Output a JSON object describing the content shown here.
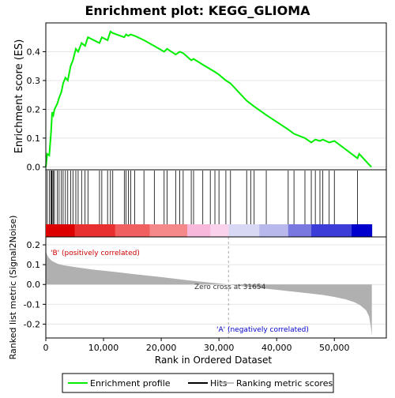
{
  "chart_data": {
    "type": "line",
    "title": "Enrichment plot: KEGG_GLIOMA",
    "xlabel": "Rank in Ordered Dataset",
    "xlim": [
      0,
      59000
    ],
    "x_ticks": [
      0,
      10000,
      20000,
      30000,
      40000,
      50000
    ],
    "x_tick_labels": [
      "0",
      "10,000",
      "20,000",
      "30,000",
      "40,000",
      "50,000"
    ],
    "es_panel": {
      "ylabel": "Enrichment score (ES)",
      "ylim": [
        -0.01,
        0.5
      ],
      "y_ticks": [
        0.0,
        0.1,
        0.2,
        0.3,
        0.4
      ],
      "y_tick_labels": [
        "0.0",
        "0.1",
        "0.2",
        "0.3",
        "0.4"
      ],
      "series": [
        {
          "name": "Enrichment profile",
          "color": "#00ee00",
          "x": [
            0,
            250,
            600,
            900,
            1100,
            1300,
            1500,
            2000,
            2300,
            2700,
            3000,
            3400,
            3800,
            4300,
            4700,
            5200,
            5600,
            6200,
            6800,
            7300,
            9300,
            9700,
            10700,
            11200,
            11600,
            13600,
            13900,
            14300,
            14700,
            15400,
            17000,
            18800,
            20500,
            21000,
            22500,
            23200,
            23800,
            25200,
            25600,
            27200,
            29300,
            30000,
            31200,
            32000,
            34800,
            36100,
            38200,
            42000,
            43000,
            44900,
            46000,
            46700,
            47500,
            48000,
            49100,
            50000,
            54000,
            54300,
            56400
          ],
          "y": [
            0.0,
            0.045,
            0.04,
            0.12,
            0.19,
            0.18,
            0.2,
            0.22,
            0.24,
            0.26,
            0.29,
            0.31,
            0.3,
            0.35,
            0.37,
            0.41,
            0.4,
            0.43,
            0.42,
            0.45,
            0.43,
            0.45,
            0.44,
            0.47,
            0.465,
            0.45,
            0.46,
            0.455,
            0.46,
            0.455,
            0.44,
            0.42,
            0.4,
            0.41,
            0.39,
            0.4,
            0.395,
            0.37,
            0.375,
            0.355,
            0.33,
            0.32,
            0.3,
            0.29,
            0.23,
            0.21,
            0.18,
            0.13,
            0.115,
            0.1,
            0.085,
            0.095,
            0.09,
            0.095,
            0.085,
            0.09,
            0.03,
            0.045,
            0.0
          ]
        }
      ]
    },
    "hits": {
      "name": "Hits",
      "color": "#000000",
      "x": [
        250,
        600,
        900,
        1000,
        1100,
        1300,
        1500,
        2000,
        2300,
        2700,
        3000,
        3400,
        3800,
        4300,
        4700,
        5200,
        5600,
        6200,
        6800,
        7300,
        9300,
        9700,
        10700,
        11200,
        11600,
        13600,
        13900,
        14300,
        14700,
        15400,
        17000,
        18800,
        20500,
        21000,
        22500,
        23200,
        23800,
        25200,
        25600,
        27200,
        28500,
        29300,
        30000,
        31200,
        32000,
        34800,
        35500,
        36100,
        38200,
        42000,
        43000,
        44900,
        46000,
        46700,
        47500,
        48000,
        49100,
        50000,
        54000
      ]
    },
    "ranking_bar": {
      "segments": [
        {
          "to": 5000,
          "color": "#dd0000"
        },
        {
          "to": 12000,
          "color": "#e83030"
        },
        {
          "to": 18000,
          "color": "#f06060"
        },
        {
          "to": 24500,
          "color": "#f58888"
        },
        {
          "to": 28500,
          "color": "#f8b8dc"
        },
        {
          "to": 31654,
          "color": "#fbd2ec"
        },
        {
          "to": 37000,
          "color": "#d8d8f4"
        },
        {
          "to": 42000,
          "color": "#b8b8ec"
        },
        {
          "to": 46000,
          "color": "#7878e0"
        },
        {
          "to": 53000,
          "color": "#3c3cd8"
        },
        {
          "to": 56500,
          "color": "#0000cc"
        }
      ]
    },
    "metric_panel": {
      "name": "Ranking metric scores",
      "ylabel": "Ranked list metric (Signal2Noise)",
      "ylim": [
        -0.27,
        0.24
      ],
      "y_ticks": [
        -0.2,
        -0.1,
        0.0,
        0.1,
        0.2
      ],
      "y_tick_labels": [
        "-0.2",
        "-0.1",
        "0.0",
        "0.1",
        "0.2"
      ],
      "color": "#b0b0b0",
      "x": [
        0,
        200,
        500,
        1000,
        2000,
        3000,
        5000,
        8000,
        12000,
        16000,
        20000,
        25000,
        30000,
        31654,
        35000,
        40000,
        45000,
        48000,
        50000,
        52000,
        53500,
        54500,
        55500,
        56000,
        56300,
        56500
      ],
      "y": [
        0.17,
        0.15,
        0.135,
        0.12,
        0.105,
        0.097,
        0.088,
        0.076,
        0.063,
        0.05,
        0.037,
        0.02,
        0.005,
        0.0,
        -0.012,
        -0.027,
        -0.043,
        -0.053,
        -0.063,
        -0.075,
        -0.09,
        -0.105,
        -0.13,
        -0.16,
        -0.21,
        -0.26
      ]
    },
    "annotations": {
      "positive": "'B' (positively correlated)",
      "negative": "'A' (negatively correlated)",
      "zero_cross": "Zero cross at 31654",
      "zero_cross_x": 31654
    },
    "legend": {
      "placement": "bottom",
      "entries": [
        {
          "label": "Enrichment profile",
          "color": "#00ee00"
        },
        {
          "label": "Hits",
          "color": "#000000"
        },
        {
          "label": "Ranking metric scores",
          "color": "#c0c0c0"
        }
      ]
    }
  }
}
